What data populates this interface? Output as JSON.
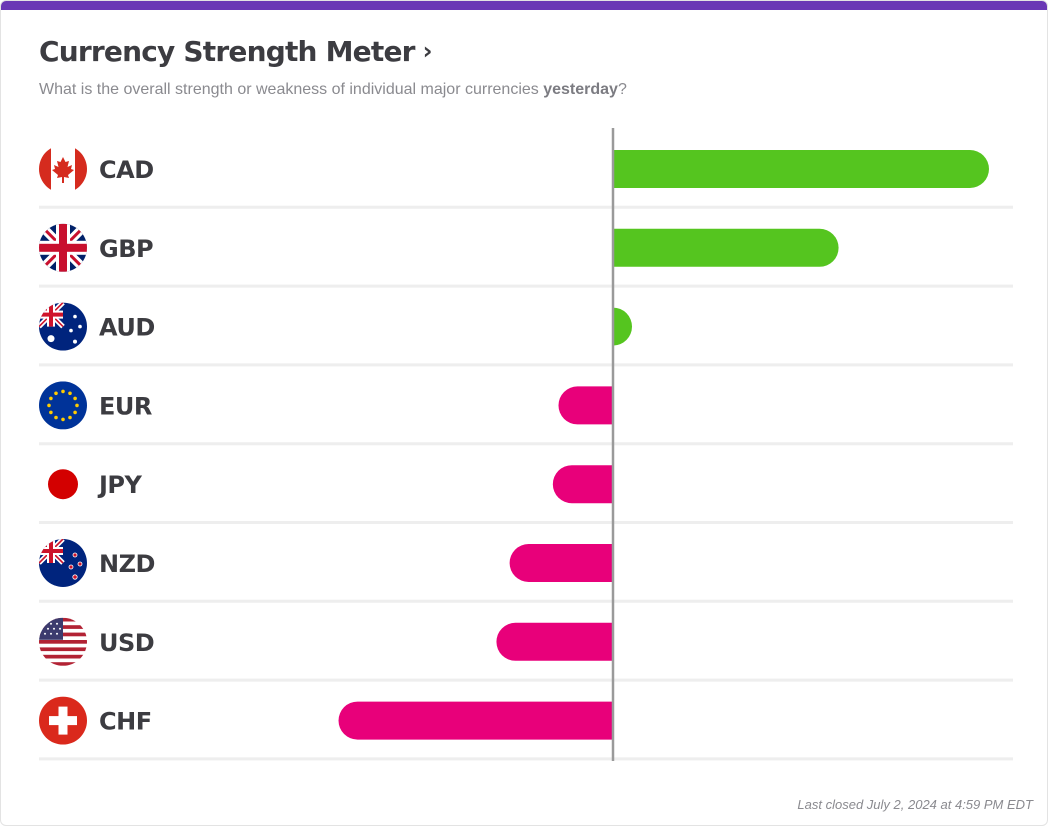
{
  "header": {
    "title": "Currency Strength Meter",
    "title_chevron": "›",
    "subtitle_before": "What is the overall strength or weakness of individual major currencies ",
    "subtitle_bold": "yesterday",
    "subtitle_after": "?"
  },
  "footer": {
    "last_closed": "Last closed July 2, 2024 at 4:59 PM EDT"
  },
  "colors": {
    "positive": "#55c51f",
    "negative": "#e8007a",
    "axis": "#9a9a9a",
    "divider": "#eeeeee",
    "accent": "#6a38b5"
  },
  "chart_data": {
    "type": "bar",
    "orientation": "horizontal",
    "categories": [
      "CAD",
      "GBP",
      "AUD",
      "EUR",
      "JPY",
      "NZD",
      "USD",
      "CHF"
    ],
    "values": [
      100,
      60,
      5,
      -14.5,
      -16,
      -27.5,
      -31,
      -73
    ],
    "flags": [
      "canada-flag-icon",
      "uk-flag-icon",
      "australia-flag-icon",
      "eu-flag-icon",
      "japan-flag-icon",
      "new-zealand-flag-icon",
      "usa-flag-icon",
      "switzerland-flag-icon"
    ],
    "xlim": [
      -150,
      107
    ],
    "grid": false,
    "baseline": 0
  }
}
